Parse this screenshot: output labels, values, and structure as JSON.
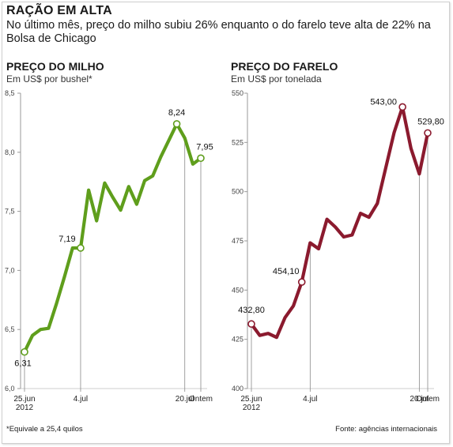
{
  "header": {
    "title": "RAÇÃO EM ALTA",
    "subtitle": "No último mês, preço do milho subiu 26% enquanto o do farelo teve alta de 22% na Bolsa de Chicago"
  },
  "footer": {
    "footnote": "*Equivale a 25,4 quilos",
    "source": "Fonte: agências internacionais"
  },
  "chart_data": [
    {
      "type": "line",
      "title": "PREÇO DO MILHO",
      "unit": "Em US$ por bushel*",
      "color": "#5f9e1c",
      "ylim": [
        6.0,
        8.5
      ],
      "yticks": [
        6.0,
        6.5,
        7.0,
        7.5,
        8.0,
        8.5
      ],
      "ytick_labels": [
        "6,0",
        "6,5",
        "7,0",
        "7,5",
        "8,0",
        "8,5"
      ],
      "x_labels": [
        "25.jun\n2012",
        "4.jul",
        "20.jul",
        "Ontem"
      ],
      "x_label_index": [
        0,
        7,
        20,
        23
      ],
      "values": [
        6.31,
        6.45,
        6.5,
        6.51,
        6.72,
        6.95,
        7.19,
        7.19,
        7.68,
        7.42,
        7.74,
        7.62,
        7.51,
        7.71,
        7.56,
        7.76,
        7.8,
        7.96,
        8.1,
        8.24,
        8.12,
        7.9,
        7.95
      ],
      "highlights": [
        {
          "index": 0,
          "label": "6,31"
        },
        {
          "index": 7,
          "label": "7,19"
        },
        {
          "index": 19,
          "label": "8,24"
        },
        {
          "index": 22,
          "label": "7,95"
        }
      ]
    },
    {
      "type": "line",
      "title": "PREÇO DO FARELO",
      "unit": "Em US$ por tonelada",
      "color": "#8b1a2e",
      "ylim": [
        400,
        550
      ],
      "yticks": [
        400,
        425,
        450,
        475,
        500,
        525,
        550
      ],
      "ytick_labels": [
        "400",
        "425",
        "450",
        "475",
        "500",
        "525",
        "550"
      ],
      "x_labels": [
        "25.jun\n2012",
        "4.jul",
        "20.jul",
        "Ontem"
      ],
      "x_label_index": [
        0,
        7,
        20,
        23
      ],
      "values": [
        432.8,
        427,
        428,
        426,
        436,
        442,
        454.1,
        474,
        471,
        486,
        482,
        477,
        478,
        489,
        487,
        494,
        512,
        530,
        543.0,
        522,
        509,
        529.8
      ],
      "highlights": [
        {
          "index": 0,
          "label": "432,80"
        },
        {
          "index": 6,
          "label": "454,10"
        },
        {
          "index": 18,
          "label": "543,00"
        },
        {
          "index": 21,
          "label": "529,80"
        }
      ]
    }
  ]
}
